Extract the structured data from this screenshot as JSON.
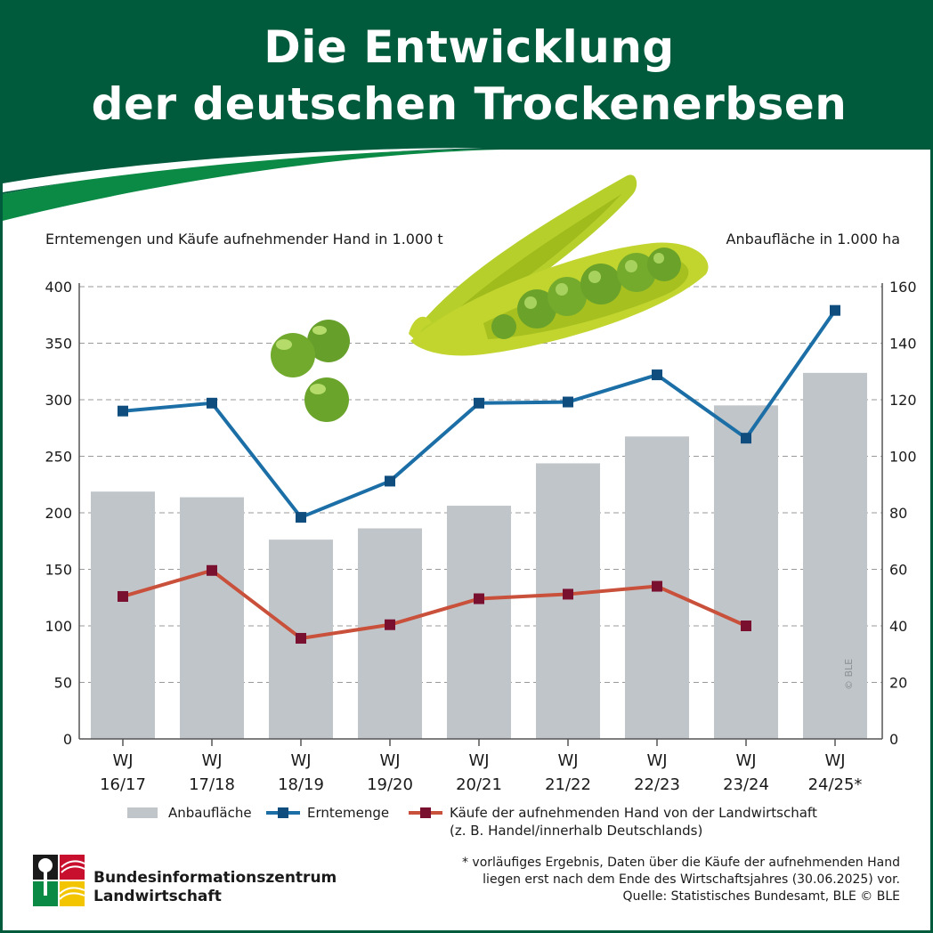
{
  "header": {
    "title_line1": "Die Entwicklung",
    "title_line2": "der deutschen Trockenerbsen",
    "bg_color": "#005a3c",
    "accent_color": "#0b8a45"
  },
  "axes": {
    "left_title": "Erntemengen und Käufe aufnehmender Hand in 1.000 t",
    "right_title": "Anbaufläche in 1.000 ha"
  },
  "chart_data": {
    "type": "bar+line",
    "categories": [
      "WJ 16/17",
      "WJ 17/18",
      "WJ 18/19",
      "WJ 19/20",
      "WJ 20/21",
      "WJ 21/22",
      "WJ 22/23",
      "WJ 23/24",
      "WJ 24/25*"
    ],
    "category_lines": [
      [
        "WJ",
        "16/17"
      ],
      [
        "WJ",
        "17/18"
      ],
      [
        "WJ",
        "18/19"
      ],
      [
        "WJ",
        "19/20"
      ],
      [
        "WJ",
        "20/21"
      ],
      [
        "WJ",
        "21/22"
      ],
      [
        "WJ",
        "22/23"
      ],
      [
        "WJ",
        "23/24"
      ],
      [
        "WJ",
        "24/25*"
      ]
    ],
    "left_axis": {
      "ylim": [
        0,
        400
      ],
      "ticks": [
        "0",
        "50",
        "100",
        "150",
        "200",
        "250",
        "300",
        "350",
        "400"
      ]
    },
    "right_axis": {
      "ylim": [
        0,
        160
      ],
      "ticks": [
        "0",
        "20",
        "40",
        "60",
        "80",
        "100",
        "120",
        "140",
        "160"
      ]
    },
    "grid": true,
    "legend_position": "bottom",
    "series": [
      {
        "name": "Anbaufläche",
        "type": "bar",
        "axis": "right",
        "color": "#c0c5c9",
        "values": [
          87.5,
          85.5,
          70.5,
          74.5,
          82.5,
          97.5,
          107,
          118,
          129.5
        ]
      },
      {
        "name": "Erntemenge",
        "type": "line",
        "axis": "left",
        "color": "#1b6fa6",
        "marker": "#0e4d7e",
        "values": [
          290,
          297,
          196,
          228,
          297,
          298,
          322,
          266,
          379
        ]
      },
      {
        "name": "Käufe der aufnehmenden Hand von der Landwirtschaft",
        "name_line2": "(z. B. Handel/innerhalb Deutschlands)",
        "type": "line",
        "axis": "left",
        "color": "#c9503a",
        "marker": "#7a1030",
        "values": [
          126,
          149,
          89,
          101,
          124,
          128,
          135,
          100,
          null
        ]
      }
    ]
  },
  "footnote": {
    "line1": "* vorläufiges Ergebnis, Daten über die Käufe der aufnehmenden Hand",
    "line2": "liegen erst nach dem Ende des Wirtschaftsjahres (30.06.2025) vor.",
    "line3": "Quelle: Statistisches Bundesamt, BLE © BLE"
  },
  "logo": {
    "line1": "Bundesinformationszentrum",
    "line2": "Landwirtschaft"
  },
  "watermark": "© BLE"
}
